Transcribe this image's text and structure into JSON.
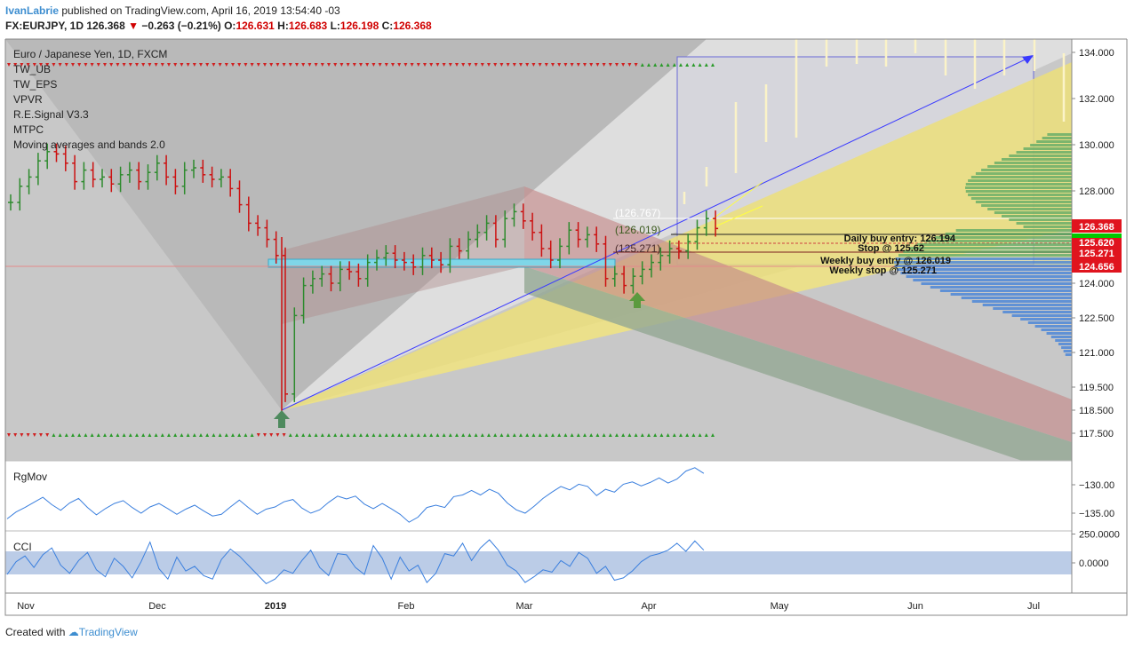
{
  "header": {
    "author": "IvanLabrie",
    "published": "published on TradingView.com, April 16, 2019 13:54:40 -03",
    "symbol": "FX:EURJPY, 1D",
    "last": "126.368",
    "change_arrow": "▼",
    "change": "−0.263 (−0.21%)",
    "o_label": "O:",
    "o": "126.631",
    "h_label": "H:",
    "h": "126.683",
    "l_label": "L:",
    "l": "126.198",
    "c_label": "C:",
    "c": "126.368"
  },
  "legend": {
    "title": "Euro / Japanese Yen, 1D, FXCM",
    "studies": [
      "TW_UB",
      "TW_EPS",
      "VPVR",
      "R.E.Signal V3.3",
      "MTPC",
      "Moving averages and bands 2.0"
    ]
  },
  "annotations": {
    "lvl_a": "(126.767)",
    "lvl_b": "(126.019)",
    "lvl_c": "(125.271)",
    "daily_entry": "Daily buy entry: 126.194",
    "stop": "Stop @ 125.62",
    "weekly_entry": "Weekly buy entry @ 126.019",
    "weekly_stop": "Weekly stop @ 125.271"
  },
  "price_tags": [
    {
      "text": "126.368",
      "bg": "#e0141e"
    },
    {
      "text": "125.620",
      "bg": "#e0141e"
    },
    {
      "text": "125.271",
      "bg": "#e0141e"
    },
    {
      "text": "124.656",
      "bg": "#e0141e"
    }
  ],
  "panes": {
    "rgmov_label": "RgMov",
    "cci_label": "CCI"
  },
  "footer": {
    "created": "Created with",
    "brand": "TradingView"
  },
  "colors": {
    "bull": "#2e8b2e",
    "bear": "#cc1111",
    "channel": "#b0d8cc",
    "fan": "#f3e88a",
    "regression": "#c98585",
    "volume_profile": "#3d7fd9",
    "indicator_line": "#3a7fde"
  },
  "chart_data": {
    "type": "line",
    "title": "Euro / Japanese Yen, 1D, FXCM",
    "price_axis": {
      "ticks": [
        "134.000",
        "132.000",
        "130.000",
        "128.000",
        "126.000",
        "124.000",
        "122.500",
        "121.000",
        "119.500",
        "118.500",
        "117.500"
      ],
      "ylim": [
        117.0,
        134.6
      ]
    },
    "time_axis": {
      "ticks": [
        "Nov",
        "Dec",
        "2019",
        "Feb",
        "Mar",
        "Apr",
        "May",
        "Jun",
        "Jul"
      ]
    },
    "series": [
      {
        "values": [
          127.5,
          128.2,
          128.6,
          129.3,
          129.7,
          129.6,
          129.2,
          128.4,
          128.9,
          128.5,
          128.6,
          128.3,
          128.7,
          128.9,
          128.4,
          128.8,
          129.2,
          128.6,
          128.2,
          128.9,
          129.0,
          128.7,
          128.5,
          128.6,
          128.1,
          127.4,
          126.6,
          126.4,
          125.9,
          125.2,
          119.2,
          122.6,
          123.9,
          124.2,
          124.4,
          124.0,
          124.6,
          124.5,
          124.2,
          124.9,
          125.1,
          125.3,
          125.0,
          124.9,
          124.7,
          125.2,
          125.0,
          124.8,
          125.6,
          125.4,
          125.9,
          126.2,
          126.6,
          125.9,
          126.8,
          127.1,
          126.7,
          126.2,
          125.5,
          125.0,
          125.6,
          126.3,
          125.9,
          126.1,
          125.7,
          124.2,
          124.4,
          123.9,
          124.3,
          124.6,
          124.9,
          125.2,
          125.5,
          125.4,
          125.8,
          126.4,
          126.8,
          126.37
        ]
      }
    ],
    "levels": [
      {
        "name": "Daily buy entry",
        "value": 126.194
      },
      {
        "name": "Stop",
        "value": 125.62
      },
      {
        "name": "Weekly buy entry",
        "value": 126.019
      },
      {
        "name": "Weekly stop",
        "value": 125.271
      }
    ],
    "rgmov": {
      "ticks": [
        "−130.00",
        "−135.00"
      ],
      "values": [
        -136,
        -134.8,
        -134,
        -133.1,
        -132.2,
        -133.5,
        -134.5,
        -133.2,
        -132.4,
        -134.0,
        -135.3,
        -134.2,
        -133.3,
        -132.8,
        -134.0,
        -135.0,
        -133.9,
        -133.3,
        -134.2,
        -135.2,
        -134.3,
        -133.6,
        -134.6,
        -135.5,
        -135.2,
        -133.9,
        -132.7,
        -134.0,
        -135.2,
        -134.3,
        -133.9,
        -133.0,
        -132.6,
        -134.1,
        -135.0,
        -134.4,
        -133.1,
        -132.0,
        -132.5,
        -132.0,
        -133.4,
        -134.2,
        -133.3,
        -134.2,
        -135.2,
        -136.6,
        -135.7,
        -134.0,
        -133.6,
        -134.0,
        -132.1,
        -131.8,
        -131.0,
        -131.8,
        -130.8,
        -131.5,
        -133.2,
        -134.4,
        -135.0,
        -133.8,
        -132.4,
        -131.3,
        -130.3,
        -130.9,
        -129.9,
        -130.3,
        -131.9,
        -130.8,
        -131.3,
        -129.9,
        -129.5,
        -130.2,
        -129.6,
        -128.8,
        -129.7,
        -129.0,
        -127.6,
        -127.0,
        -128.0
      ]
    },
    "cci": {
      "ticks": [
        "250.0000",
        "0.0000"
      ],
      "band": [
        -100,
        100
      ],
      "values": [
        -100,
        10,
        60,
        -40,
        70,
        130,
        -20,
        -90,
        20,
        90,
        -60,
        -120,
        40,
        -30,
        -130,
        10,
        180,
        -50,
        -140,
        50,
        -70,
        -30,
        -110,
        -140,
        30,
        120,
        60,
        -20,
        -100,
        -180,
        -140,
        -60,
        -90,
        20,
        110,
        -40,
        -110,
        80,
        70,
        -40,
        -100,
        150,
        40,
        -140,
        50,
        -70,
        -20,
        -170,
        -90,
        80,
        60,
        170,
        20,
        130,
        200,
        110,
        -20,
        -70,
        -170,
        -120,
        -60,
        -80,
        20,
        -30,
        90,
        40,
        -90,
        -30,
        -150,
        -130,
        -70,
        10,
        60,
        80,
        110,
        170,
        100,
        190,
        110
      ]
    }
  }
}
